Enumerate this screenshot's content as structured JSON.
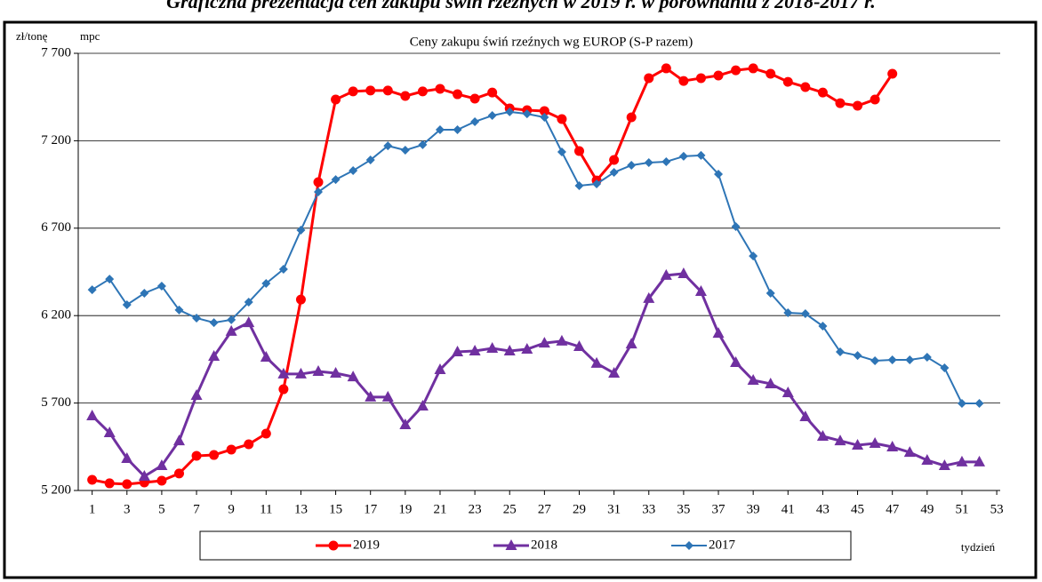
{
  "page_title": "Graficzna prezentacja cen zakupu świń rzeźnych w 2019 r. w porównaniu z 2018-2017 r.",
  "chart_data": {
    "type": "line",
    "title": "Ceny zakupu świń rzeźnych wg EUROP (S-P razem)",
    "y_label": "zł/tonę",
    "y_unit": "mpc",
    "x_label": "tydzień",
    "x": [
      1,
      2,
      3,
      4,
      5,
      6,
      7,
      8,
      9,
      10,
      11,
      12,
      13,
      14,
      15,
      16,
      17,
      18,
      19,
      20,
      21,
      22,
      23,
      24,
      25,
      26,
      27,
      28,
      29,
      30,
      31,
      32,
      33,
      34,
      35,
      36,
      37,
      38,
      39,
      40,
      41,
      42,
      43,
      44,
      45,
      46,
      47,
      48,
      49,
      50,
      51,
      52
    ],
    "xlim": [
      0.2,
      53.2
    ],
    "xticks": [
      1,
      3,
      5,
      7,
      9,
      11,
      13,
      15,
      17,
      19,
      21,
      23,
      25,
      27,
      29,
      31,
      33,
      35,
      37,
      39,
      41,
      43,
      45,
      47,
      49,
      51,
      53
    ],
    "ylim": [
      5200,
      7700
    ],
    "yticks": [
      {
        "value": 5200,
        "label": "5 200"
      },
      {
        "value": 5700,
        "label": "5 700"
      },
      {
        "value": 6200,
        "label": "6 200"
      },
      {
        "value": 6700,
        "label": "6 700"
      },
      {
        "value": 7200,
        "label": "7 200"
      },
      {
        "value": 7700,
        "label": "7 700"
      }
    ],
    "grid": true,
    "legend": "bottom",
    "series": [
      {
        "name": "2019",
        "color": "#ff0000",
        "marker": "circle",
        "values": [
          5261,
          5241,
          5236,
          5246,
          5256,
          5297,
          5398,
          5403,
          5434,
          5464,
          5525,
          5779,
          6292,
          6963,
          7436,
          7482,
          7487,
          7487,
          7456,
          7482,
          7497,
          7466,
          7441,
          7476,
          7385,
          7375,
          7370,
          7324,
          7141,
          6973,
          7090,
          7334,
          7558,
          7614,
          7542,
          7558,
          7573,
          7603,
          7614,
          7583,
          7537,
          7507,
          7476,
          7415,
          7400,
          7436,
          7583,
          null,
          null,
          null,
          null,
          null
        ]
      },
      {
        "name": "2018",
        "color": "#7030a0",
        "marker": "triangle",
        "values": [
          5627,
          5530,
          5383,
          5281,
          5342,
          5484,
          5744,
          5967,
          6110,
          6160,
          5962,
          5866,
          5866,
          5881,
          5871,
          5850,
          5734,
          5734,
          5576,
          5683,
          5891,
          5993,
          5998,
          6013,
          5998,
          6008,
          6043,
          6054,
          6023,
          5927,
          5871,
          6038,
          6298,
          6430,
          6440,
          6338,
          6099,
          5932,
          5830,
          5810,
          5759,
          5622,
          5510,
          5484,
          5459,
          5469,
          5449,
          5418,
          5373,
          5342,
          5363,
          5363
        ]
      },
      {
        "name": "2017",
        "color": "#2e75b6",
        "marker": "diamond",
        "values": [
          6348,
          6409,
          6262,
          6328,
          6369,
          6232,
          6186,
          6160,
          6176,
          6277,
          6384,
          6465,
          6689,
          6907,
          6978,
          7029,
          7090,
          7171,
          7146,
          7177,
          7263,
          7263,
          7309,
          7344,
          7365,
          7354,
          7334,
          7136,
          6943,
          6953,
          7019,
          7060,
          7075,
          7080,
          7111,
          7116,
          7009,
          6709,
          6541,
          6328,
          6216,
          6211,
          6140,
          5993,
          5972,
          5942,
          5947,
          5947,
          5962,
          5901,
          5698,
          5698
        ]
      }
    ]
  }
}
